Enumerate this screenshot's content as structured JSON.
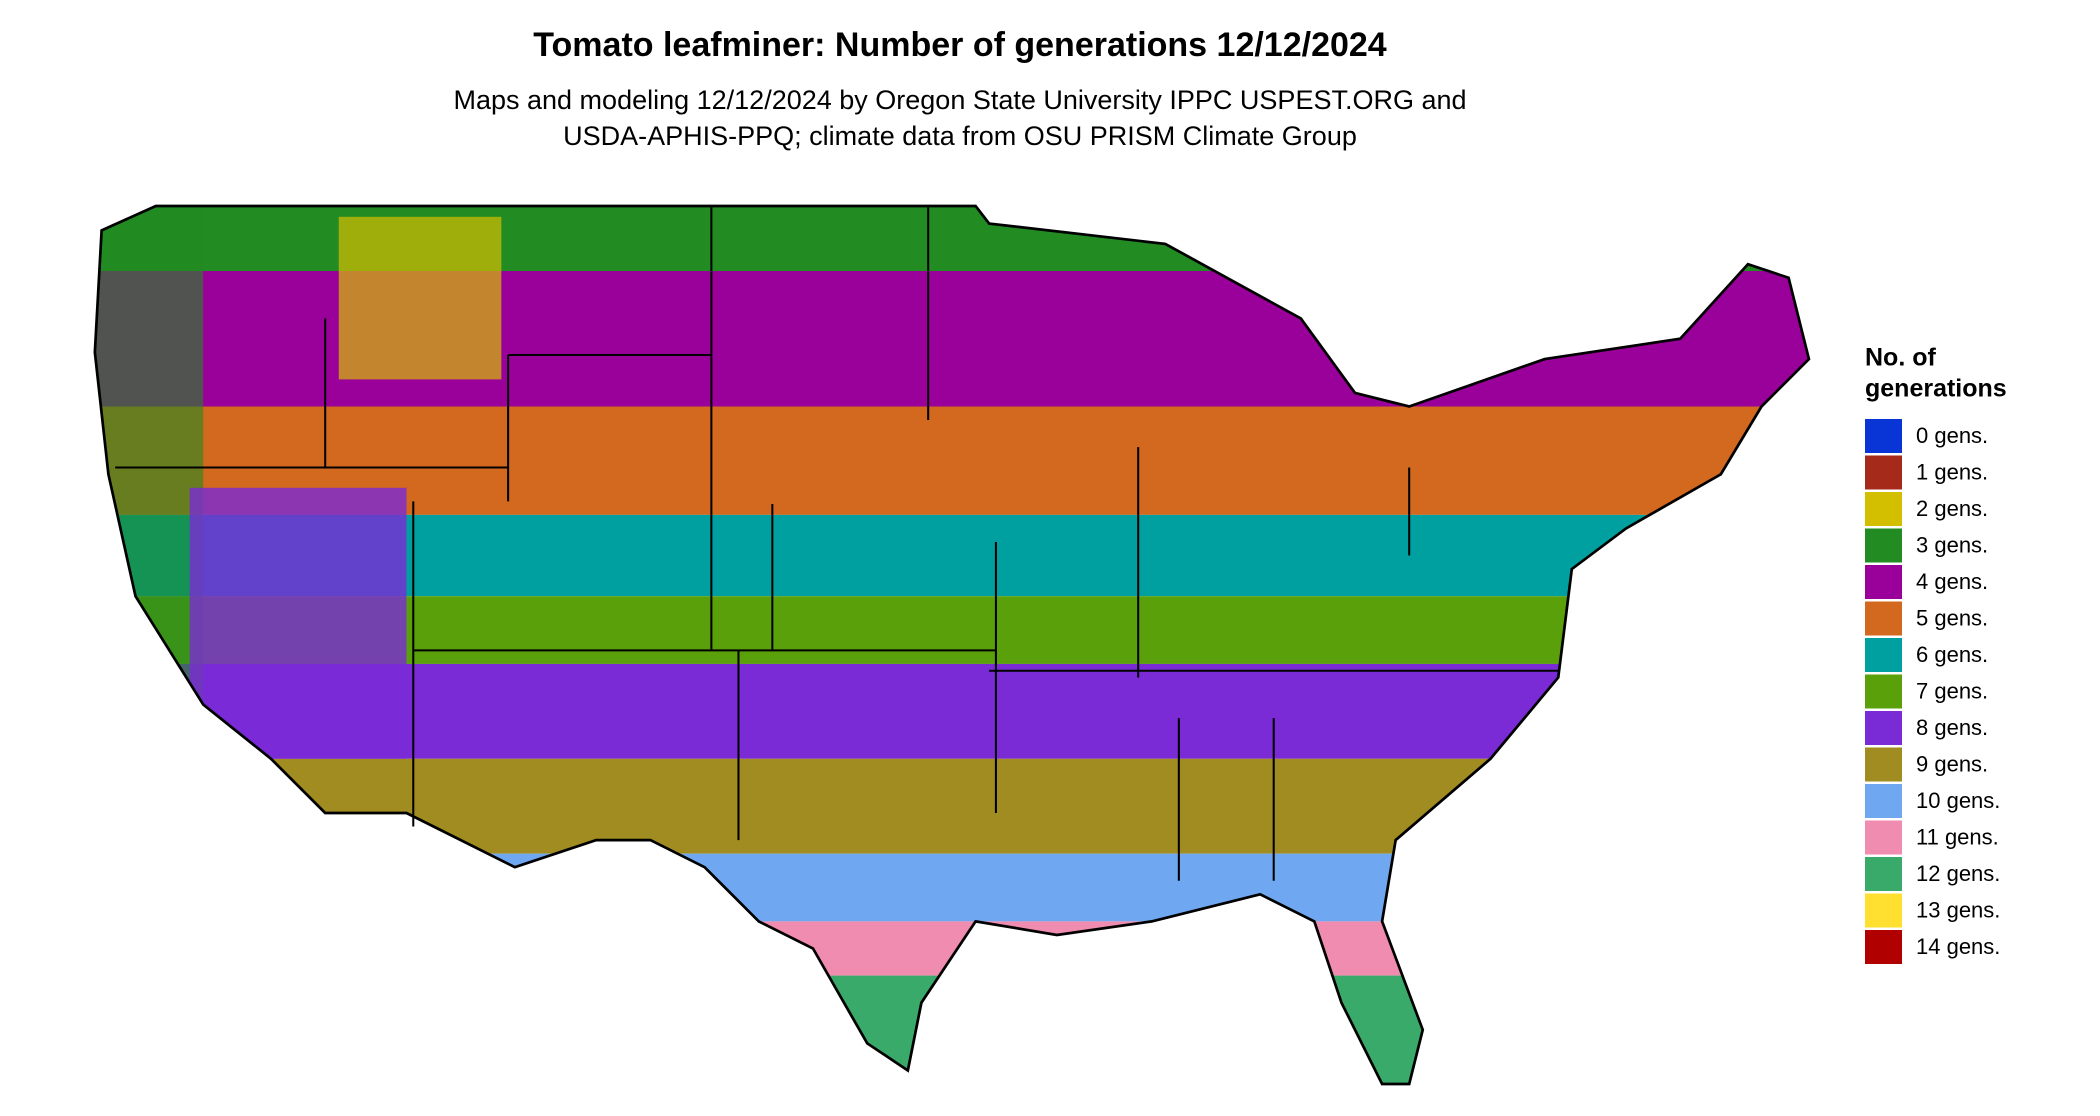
{
  "title": "Tomato leafminer: Number of generations 12/12/2024",
  "subtitle": [
    "Maps and modeling 12/12/2024 by Oregon State University IPPC USPEST.ORG and",
    "USDA-APHIS-PPQ; climate data from OSU PRISM Climate Group"
  ],
  "legend": {
    "title": [
      "No. of",
      "generations"
    ],
    "items": [
      {
        "label": "0 gens.",
        "color": "#0a35d6"
      },
      {
        "label": "1 gens.",
        "color": "#a52a1a"
      },
      {
        "label": "2 gens.",
        "color": "#d4be00"
      },
      {
        "label": "3 gens.",
        "color": "#228b22"
      },
      {
        "label": "4 gens.",
        "color": "#9a009a"
      },
      {
        "label": "5 gens.",
        "color": "#d2691e"
      },
      {
        "label": "6 gens.",
        "color": "#00a0a0"
      },
      {
        "label": "7 gens.",
        "color": "#5aa00a"
      },
      {
        "label": "8 gens.",
        "color": "#7b2bd6"
      },
      {
        "label": "9 gens.",
        "color": "#a08c20"
      },
      {
        "label": "10 gens.",
        "color": "#6fa8f0"
      },
      {
        "label": "11 gens.",
        "color": "#f08cb0"
      },
      {
        "label": "12 gens.",
        "color": "#3aaa6a"
      },
      {
        "label": "13 gens.",
        "color": "#ffe030"
      },
      {
        "label": "14 gens.",
        "color": "#b00000"
      }
    ]
  }
}
